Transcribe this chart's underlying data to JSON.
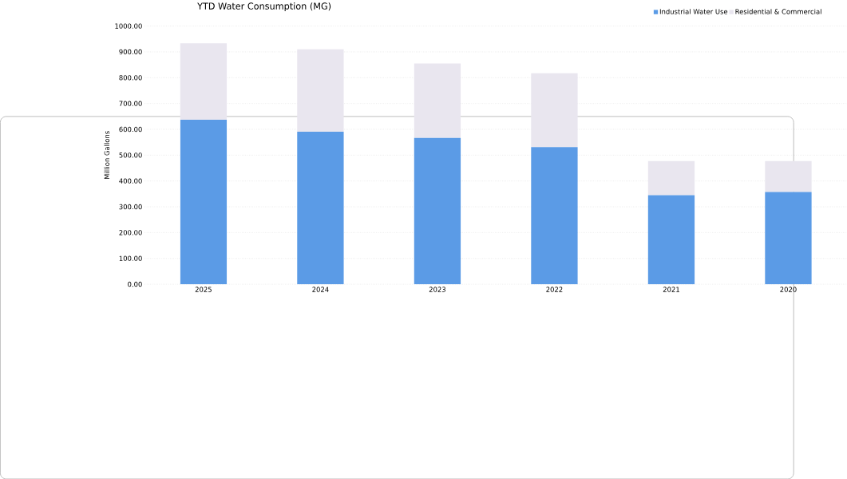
{
  "chart_data": {
    "type": "bar",
    "title": "YTD Water Consumption (MG)",
    "ylabel": "Million Gallons",
    "stacked": true,
    "categories": [
      "2025",
      "2024",
      "2023",
      "2022",
      "2021",
      "2020"
    ],
    "series": [
      {
        "name": "Industrial Water Use",
        "color": "#5b9be6",
        "values": [
          637,
          591,
          567,
          531,
          345,
          357
        ]
      },
      {
        "name": "Residential & Commercial",
        "color": "#e9e6ef",
        "values": [
          296,
          319,
          288,
          286,
          132,
          120
        ]
      }
    ],
    "ylim": [
      0,
      1000
    ],
    "yticks": [
      {
        "value": 0,
        "label": "0.00"
      },
      {
        "value": 100,
        "label": "100.00"
      },
      {
        "value": 200,
        "label": "200.00"
      },
      {
        "value": 300,
        "label": "300.00"
      },
      {
        "value": 400,
        "label": "400.00"
      },
      {
        "value": 500,
        "label": "500.00"
      },
      {
        "value": 600,
        "label": "600.00"
      },
      {
        "value": 700,
        "label": "700.00"
      },
      {
        "value": 800,
        "label": "800.00"
      },
      {
        "value": 900,
        "label": "900.00"
      },
      {
        "value": 1000,
        "label": "1000.00"
      }
    ],
    "grid": "y",
    "legend": "top right"
  }
}
